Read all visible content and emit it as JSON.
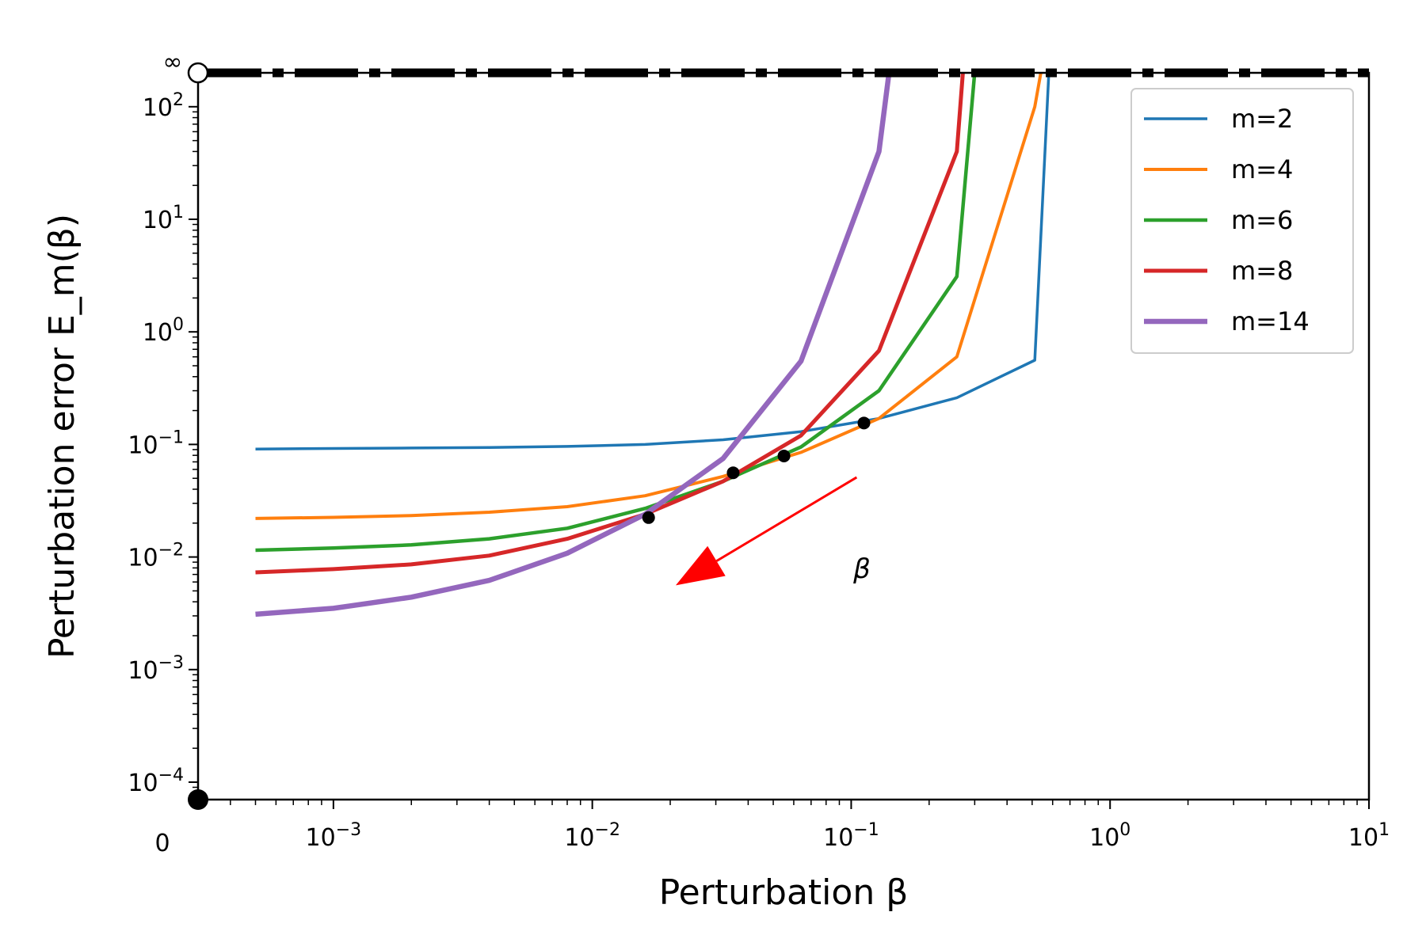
{
  "chart_data": {
    "type": "line",
    "xlabel": "Perturbation β",
    "ylabel": "Perturbation error E_m(β)",
    "x_scale": "log",
    "y_scale": "log",
    "xlim": [
      0.0003,
      10
    ],
    "ylim": [
      7e-05,
      200
    ],
    "x_ticks": [
      {
        "value": 0.001,
        "base": "10",
        "exp": "−3"
      },
      {
        "value": 0.01,
        "base": "10",
        "exp": "−2"
      },
      {
        "value": 0.1,
        "base": "10",
        "exp": "−1"
      },
      {
        "value": 1,
        "base": "10",
        "exp": "0"
      },
      {
        "value": 10,
        "base": "10",
        "exp": "1"
      }
    ],
    "y_ticks": [
      {
        "value": 0.0001,
        "base": "10",
        "exp": "−4"
      },
      {
        "value": 0.001,
        "base": "10",
        "exp": "−3"
      },
      {
        "value": 0.01,
        "base": "10",
        "exp": "−2"
      },
      {
        "value": 0.1,
        "base": "10",
        "exp": "−1"
      },
      {
        "value": 1,
        "base": "10",
        "exp": "0"
      },
      {
        "value": 10,
        "base": "10",
        "exp": "1"
      },
      {
        "value": 100,
        "base": "10",
        "exp": "2"
      }
    ],
    "zero_label": "0",
    "infinity_label": "∞",
    "series": [
      {
        "name": "m=2",
        "color": "#1f77b4",
        "width": 3.5,
        "x": [
          0.0005,
          0.001,
          0.002,
          0.004,
          0.008,
          0.016,
          0.032,
          0.064,
          0.128,
          0.256,
          0.512,
          0.58
        ],
        "y": [
          0.091,
          0.092,
          0.093,
          0.094,
          0.096,
          0.1,
          0.11,
          0.13,
          0.17,
          0.26,
          0.56,
          200
        ]
      },
      {
        "name": "m=4",
        "color": "#ff7f0e",
        "width": 4,
        "x": [
          0.0005,
          0.001,
          0.002,
          0.004,
          0.008,
          0.016,
          0.032,
          0.064,
          0.128,
          0.256,
          0.512,
          0.54
        ],
        "y": [
          0.022,
          0.0225,
          0.0233,
          0.025,
          0.028,
          0.035,
          0.052,
          0.085,
          0.17,
          0.6,
          100,
          200
        ]
      },
      {
        "name": "m=6",
        "color": "#2ca02c",
        "width": 4.5,
        "x": [
          0.0005,
          0.001,
          0.002,
          0.004,
          0.008,
          0.016,
          0.032,
          0.064,
          0.128,
          0.256,
          0.3
        ],
        "y": [
          0.0115,
          0.012,
          0.0128,
          0.0145,
          0.018,
          0.027,
          0.047,
          0.095,
          0.3,
          3.1,
          200
        ]
      },
      {
        "name": "m=8",
        "color": "#d62728",
        "width": 5,
        "x": [
          0.0005,
          0.001,
          0.002,
          0.004,
          0.008,
          0.016,
          0.032,
          0.064,
          0.128,
          0.256,
          0.27
        ],
        "y": [
          0.0073,
          0.0078,
          0.0086,
          0.0103,
          0.0145,
          0.024,
          0.047,
          0.12,
          0.68,
          40,
          200
        ]
      },
      {
        "name": "m=14",
        "color": "#9467bd",
        "width": 6.5,
        "x": [
          0.0005,
          0.001,
          0.002,
          0.004,
          0.008,
          0.016,
          0.032,
          0.064,
          0.128,
          0.14
        ],
        "y": [
          0.0031,
          0.0035,
          0.0044,
          0.0062,
          0.0108,
          0.024,
          0.075,
          0.55,
          40,
          200
        ]
      }
    ],
    "markers": [
      {
        "x": 0.0165,
        "y": 0.0224
      },
      {
        "x": 0.035,
        "y": 0.056
      },
      {
        "x": 0.055,
        "y": 0.079
      },
      {
        "x": 0.112,
        "y": 0.155
      }
    ],
    "arrow": {
      "from_x": 0.105,
      "from_y": 0.051,
      "to_x": 0.021,
      "to_y": 0.0056,
      "color": "#ff0000"
    },
    "arrow_label": {
      "text": "β",
      "x": 0.11,
      "y": 0.0065
    },
    "legend_position": "top-right",
    "grid": false
  }
}
